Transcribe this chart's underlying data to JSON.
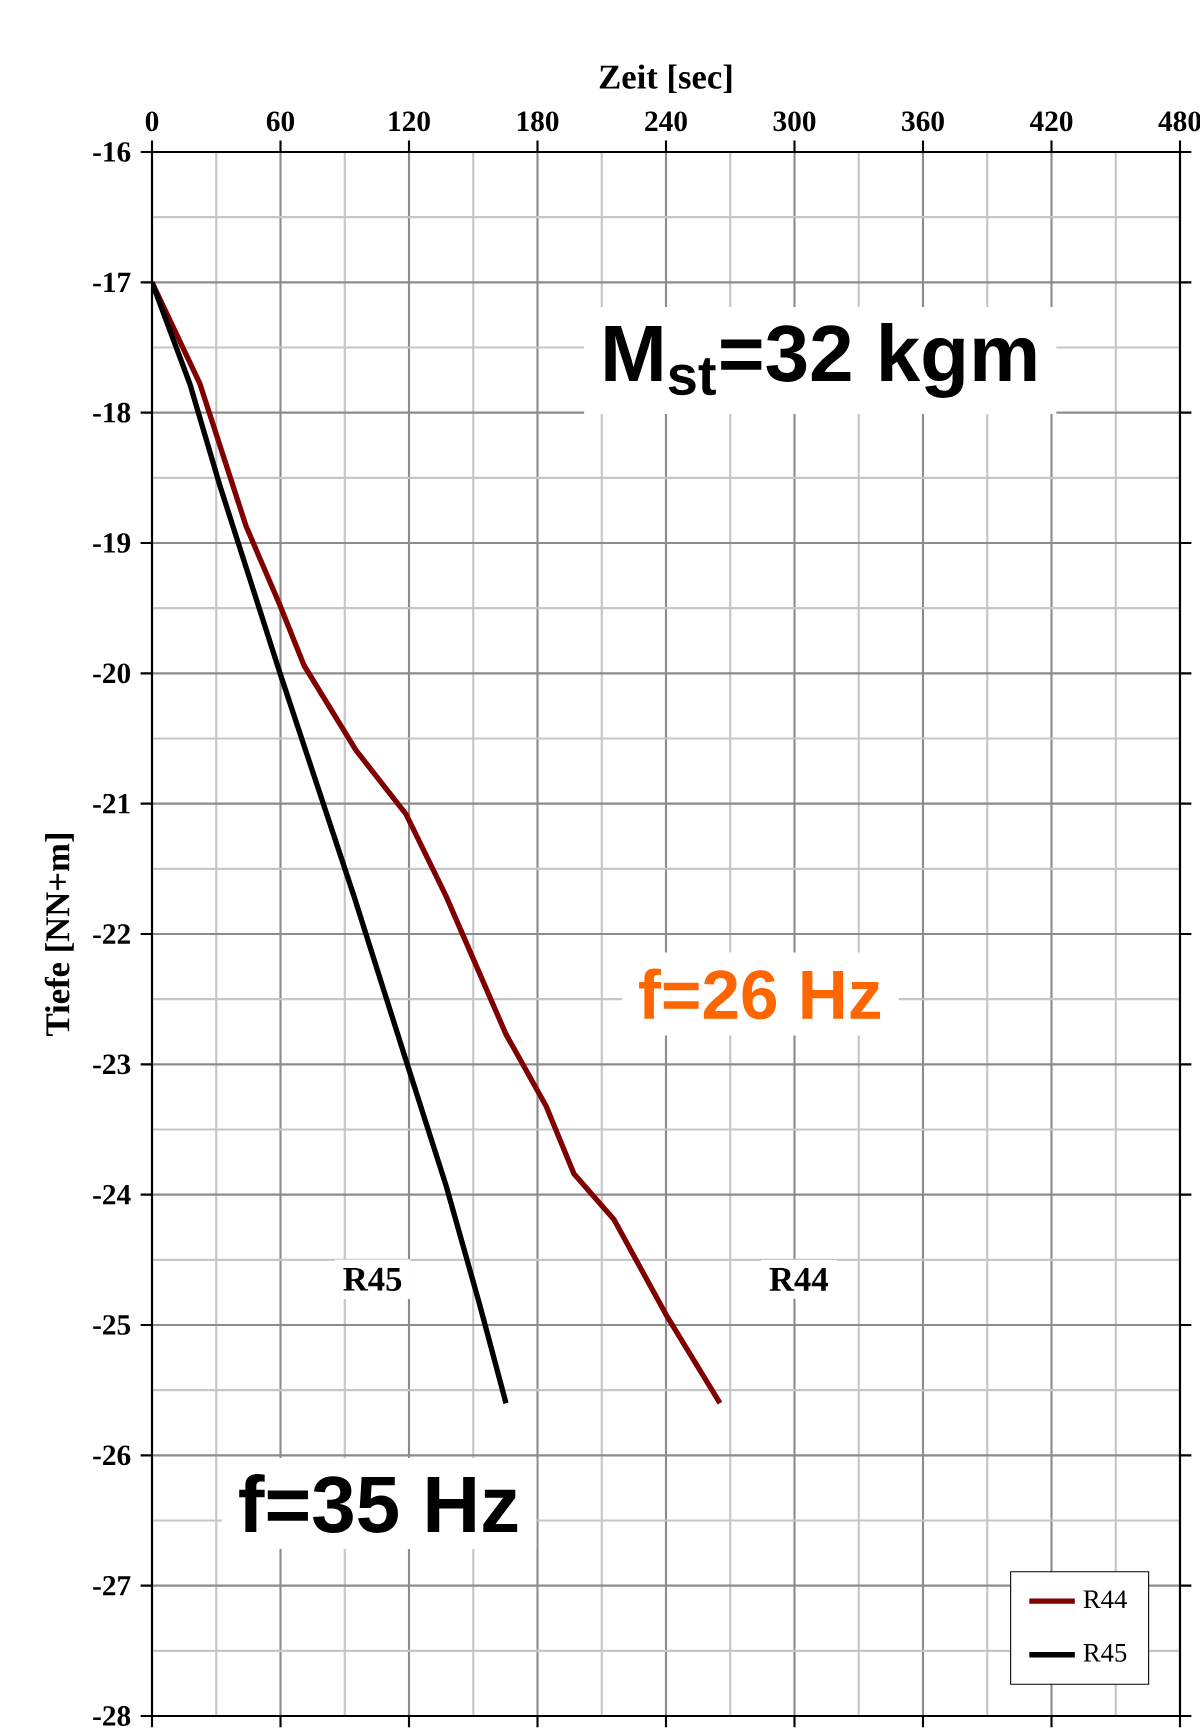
{
  "chart_data": {
    "type": "line",
    "xlabel": "Zeit [sec]",
    "ylabel": "Tiefe [NN+m]",
    "xlim": [
      0,
      480
    ],
    "xticks": [
      0,
      60,
      120,
      180,
      240,
      300,
      360,
      420,
      480
    ],
    "ylim": [
      -28,
      -16
    ],
    "yticks": [
      -16,
      -17,
      -18,
      -19,
      -20,
      -21,
      -22,
      -23,
      -24,
      -25,
      -26,
      -27,
      -28
    ],
    "grid": true,
    "legend": "bottom right",
    "line_style": "solid",
    "marker": "none",
    "series": [
      {
        "name": "R44",
        "color": "#800000",
        "x": [
          0,
          22.4,
          43.9,
          59.8,
          71,
          95.2,
          118.6,
          137.3,
          165.3,
          184,
          197,
          215.7,
          240,
          265.2
        ],
        "values": [
          -17,
          -17.78,
          -18.87,
          -19.48,
          -19.94,
          -20.59,
          -21.08,
          -21.71,
          -22.77,
          -23.32,
          -23.84,
          -24.19,
          -24.92,
          -25.6
        ]
      },
      {
        "name": "R45",
        "color": "#000000",
        "x": [
          0,
          17.7,
          31.7,
          59.8,
          94.3,
          118.6,
          137.3,
          153.1,
          165.3
        ],
        "values": [
          -17,
          -17.78,
          -18.56,
          -20.0,
          -21.71,
          -22.97,
          -23.93,
          -24.85,
          -25.6
        ]
      }
    ],
    "annotations": [
      "M$_{st}$=32 kgm",
      "f=26 Hz",
      "f=35 Hz",
      {
        "text": "R45",
        "x": 103,
        "y": -24.65
      },
      {
        "text": "R44",
        "x": 302,
        "y": -24.65
      }
    ]
  }
}
